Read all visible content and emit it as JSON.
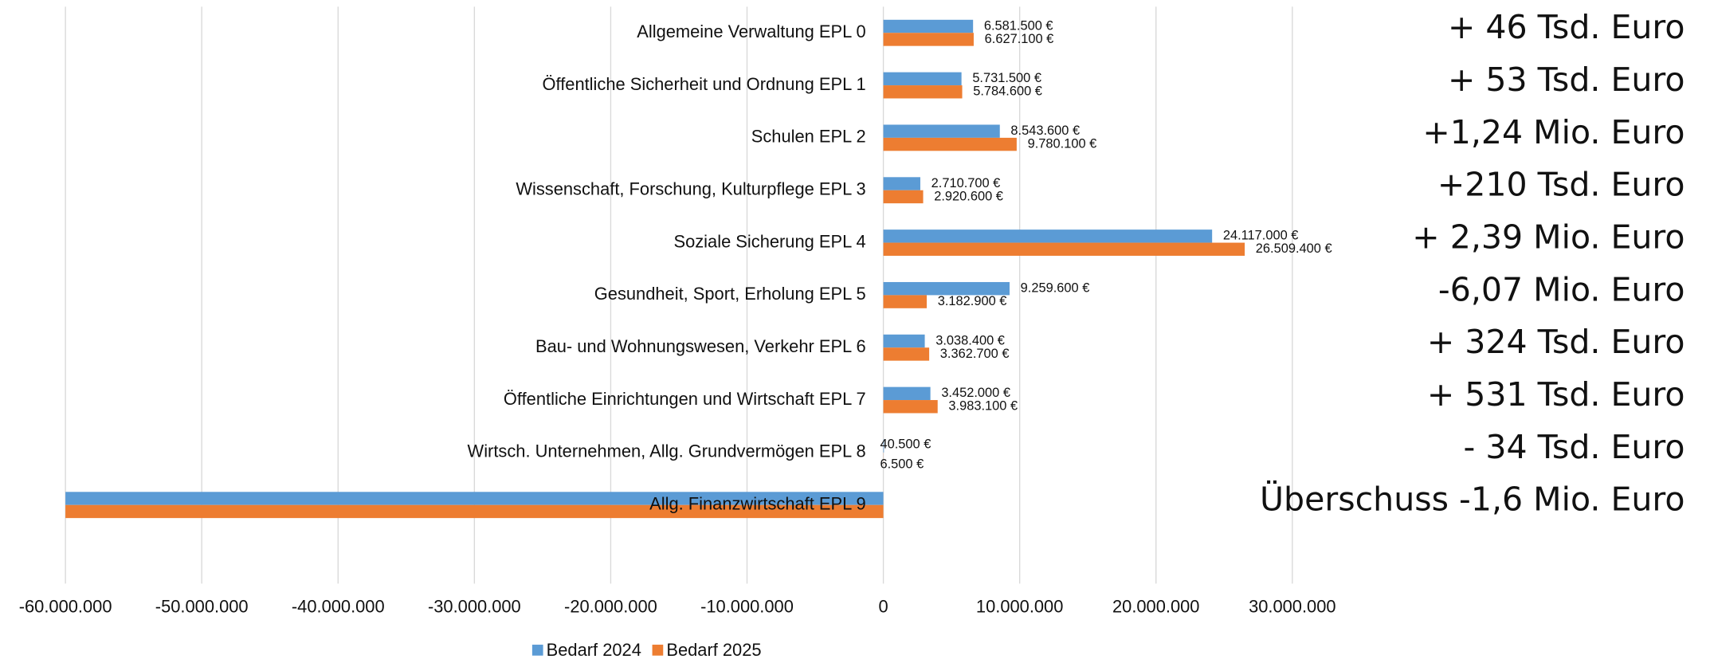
{
  "chart_data": {
    "type": "bar",
    "orientation": "horizontal",
    "categories": [
      "Allgemeine Verwaltung EPL 0",
      "Öffentliche Sicherheit und Ordnung EPL 1",
      "Schulen EPL 2",
      "Wissenschaft, Forschung, Kulturpflege EPL 3",
      "Soziale Sicherung EPL 4",
      "Gesundheit, Sport, Erholung EPL 5",
      "Bau- und Wohnungswesen, Verkehr EPL 6",
      "Öffentliche Einrichtungen und Wirtschaft EPL 7",
      "Wirtsch. Unternehmen, Allg. Grundvermögen EPL 8",
      "Allg. Finanzwirtschaft EPL 9"
    ],
    "series": [
      {
        "name": "Bedarf 2024",
        "color": "#5b9bd5",
        "values": [
          6581500,
          5731500,
          8543600,
          2710700,
          24117000,
          9259600,
          3038400,
          3452000,
          40500,
          -60000000
        ],
        "value_labels": [
          "6.581.500 €",
          "5.731.500 €",
          "8.543.600 €",
          "2.710.700 €",
          "24.117.000 €",
          "9.259.600 €",
          "3.038.400 €",
          "3.452.000 €",
          "40.500 €",
          null
        ]
      },
      {
        "name": "Bedarf 2025",
        "color": "#ed7d31",
        "values": [
          6627100,
          5784600,
          9780100,
          2920600,
          26509400,
          3182900,
          3362700,
          3983100,
          6500,
          -60000000
        ],
        "value_labels": [
          "6.627.100 €",
          "5.784.600 €",
          "9.780.100 €",
          "2.920.600 €",
          "26.509.400 €",
          "3.182.900 €",
          "3.362.700 €",
          "3.983.100 €",
          "6.500 €",
          null
        ]
      }
    ],
    "annotations": [
      "+ 46 Tsd. Euro",
      "+ 53 Tsd. Euro",
      "+1,24 Mio. Euro",
      "+210 Tsd. Euro",
      "+ 2,39 Mio. Euro",
      "-6,07 Mio. Euro",
      "+ 324 Tsd. Euro",
      "+ 531 Tsd. Euro",
      "- 34 Tsd. Euro",
      "Überschuss -1,6 Mio. Euro"
    ],
    "xlim": [
      -60000000,
      30000000
    ],
    "xticks": [
      {
        "value": -60000000,
        "label": "-60.000.000"
      },
      {
        "value": -50000000,
        "label": "-50.000.000"
      },
      {
        "value": -40000000,
        "label": "-40.000.000"
      },
      {
        "value": -30000000,
        "label": "-30.000.000"
      },
      {
        "value": -20000000,
        "label": "-20.000.000"
      },
      {
        "value": -10000000,
        "label": "-10.000.000"
      },
      0,
      {
        "value": 10000000,
        "label": "10.000.000"
      },
      {
        "value": 20000000,
        "label": "20.000.000"
      },
      {
        "value": 30000000,
        "label": "30.000.000"
      }
    ],
    "grid": true,
    "legend": "bottom"
  }
}
